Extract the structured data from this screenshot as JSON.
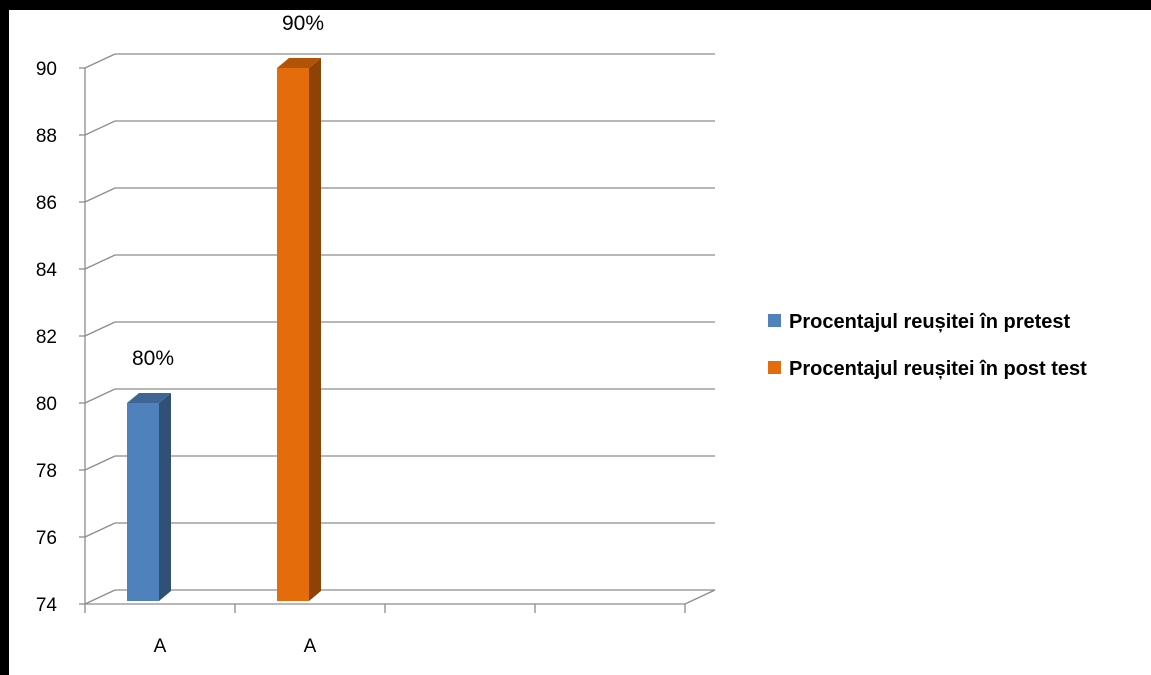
{
  "chart_data": {
    "type": "bar",
    "style": "3d-clustered-column",
    "categories": [
      "A",
      "A"
    ],
    "series": [
      {
        "name": "Procentajul reușitei în pretest",
        "color": "#4F81BD",
        "values": [
          80,
          null
        ],
        "data_labels": [
          "80%",
          ""
        ]
      },
      {
        "name": "Procentajul reușitei în post test",
        "color": "#E46C0A",
        "values": [
          null,
          90
        ],
        "data_labels": [
          "",
          "90%"
        ]
      }
    ],
    "yticks": [
      "74",
      "76",
      "78",
      "80",
      "82",
      "84",
      "86",
      "88",
      "90"
    ],
    "ylim": [
      74,
      90
    ],
    "grid": true,
    "legend_position": "right",
    "title": "",
    "xlabel": "",
    "ylabel": ""
  }
}
